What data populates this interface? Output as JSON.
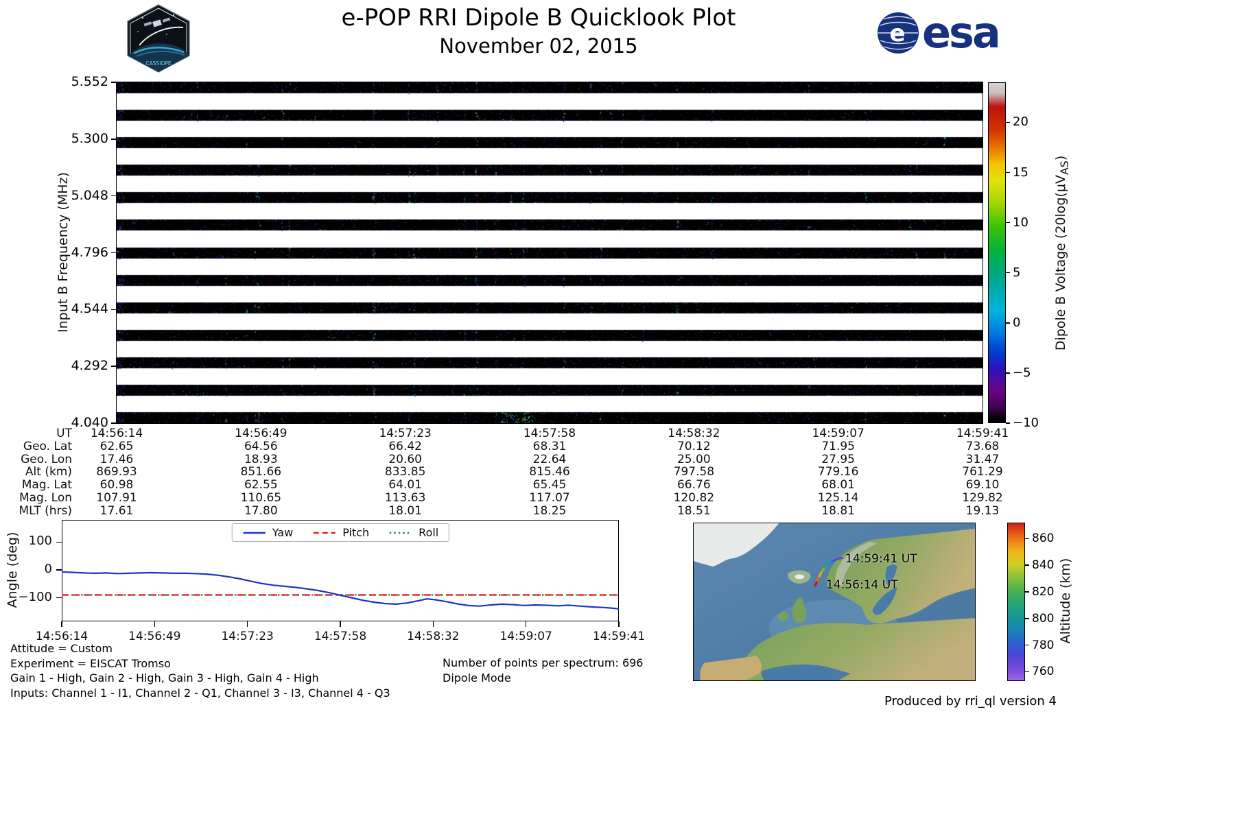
{
  "header": {
    "title": "e-POP RRI Dipole B Quicklook Plot",
    "subtitle": "November 02, 2015",
    "esa_text": "esa",
    "emblem_letter": "e",
    "mission_text": "CASSIOPE",
    "esa_blue": "#16317d"
  },
  "spectrogram": {
    "ylabel": "Input B Frequency (MHz)",
    "ytick_labels": [
      "5.552",
      "5.300",
      "5.048",
      "4.796",
      "4.544",
      "4.292",
      "4.040"
    ],
    "colorbar": {
      "label_main": "Dipole B Voltage (20log(μV",
      "label_sub": "AS",
      "label_end": ")",
      "tick_labels": [
        "20",
        "15",
        "10",
        "5",
        "0",
        "−5",
        "−10"
      ],
      "tick_values": [
        20,
        15,
        10,
        5,
        0,
        -5,
        -10
      ],
      "vmin": -10,
      "vmax": 24
    }
  },
  "ephemeris": {
    "rows": [
      {
        "label": "UT",
        "values": [
          "14:56:14",
          "14:56:49",
          "14:57:23",
          "14:57:58",
          "14:58:32",
          "14:59:07",
          "14:59:41"
        ]
      },
      {
        "label": "Geo. Lat",
        "values": [
          "62.65",
          "64.56",
          "66.42",
          "68.31",
          "70.12",
          "71.95",
          "73.68"
        ]
      },
      {
        "label": "Geo. Lon",
        "values": [
          "17.46",
          "18.93",
          "20.60",
          "22.64",
          "25.00",
          "27.95",
          "31.47"
        ]
      },
      {
        "label": "Alt (km)",
        "values": [
          "869.93",
          "851.66",
          "833.85",
          "815.46",
          "797.58",
          "779.16",
          "761.29"
        ]
      },
      {
        "label": "Mag. Lat",
        "values": [
          "60.98",
          "62.55",
          "64.01",
          "65.45",
          "66.76",
          "68.01",
          "69.10"
        ]
      },
      {
        "label": "Mag. Lon",
        "values": [
          "107.91",
          "110.65",
          "113.63",
          "117.07",
          "120.82",
          "125.14",
          "129.82"
        ]
      },
      {
        "label": "MLT (hrs)",
        "values": [
          "17.61",
          "17.80",
          "18.01",
          "18.25",
          "18.51",
          "18.81",
          "19.13"
        ]
      }
    ]
  },
  "chart_data": [
    {
      "type": "heatmap",
      "title": "RRI Dipole B spectrogram",
      "ylabel": "Input B Frequency (MHz)",
      "ytick_values": [
        5.552,
        5.3,
        5.048,
        4.796,
        4.544,
        4.292,
        4.04
      ],
      "x_range": [
        "14:56:14",
        "14:59:41"
      ],
      "num_bands": 13,
      "band_frequencies_mhz": [
        5.552,
        5.426,
        5.3,
        5.174,
        5.048,
        4.922,
        4.796,
        4.67,
        4.544,
        4.418,
        4.292,
        4.166,
        4.04
      ],
      "colorbar_label": "Dipole B Voltage (20log(μV_AS)",
      "colorbar_ticks": [
        20,
        15,
        10,
        5,
        0,
        -5,
        -10
      ],
      "colorbar_range": [
        -10,
        24
      ],
      "note": "13 horizontal black signal bands on white background, speckled with violet/blue/cyan noise"
    },
    {
      "type": "line",
      "ylabel": "Angle (deg)",
      "ytick_labels": [
        "100",
        "0",
        "−100"
      ],
      "ytick_values": [
        100,
        0,
        -100
      ],
      "ylim": [
        -185,
        180
      ],
      "x_tick_labels": [
        "14:56:14",
        "14:56:49",
        "14:57:23",
        "14:57:58",
        "14:58:32",
        "14:59:07",
        "14:59:41"
      ],
      "legend_position": "top-center",
      "series": [
        {
          "name": "Yaw",
          "color": "#1a35c8",
          "style": "solid",
          "x": [
            0,
            0.02,
            0.04,
            0.06,
            0.08,
            0.1,
            0.12,
            0.14,
            0.16,
            0.18,
            0.2,
            0.22,
            0.24,
            0.26,
            0.28,
            0.3,
            0.32,
            0.34,
            0.36,
            0.38,
            0.4,
            0.42,
            0.44,
            0.46,
            0.48,
            0.5,
            0.52,
            0.54,
            0.56,
            0.58,
            0.6,
            0.62,
            0.64,
            0.655,
            0.67,
            0.69,
            0.71,
            0.73,
            0.75,
            0.77,
            0.79,
            0.81,
            0.83,
            0.85,
            0.87,
            0.89,
            0.91,
            0.93,
            0.95,
            0.97,
            0.985,
            1.0
          ],
          "values": [
            -7,
            -9,
            -11,
            -12,
            -11,
            -13,
            -12,
            -11,
            -10,
            -11,
            -12,
            -12,
            -13,
            -15,
            -19,
            -25,
            -32,
            -41,
            -49,
            -55,
            -59,
            -63,
            -68,
            -74,
            -82,
            -91,
            -100,
            -109,
            -116,
            -121,
            -123,
            -119,
            -111,
            -104,
            -107,
            -114,
            -122,
            -128,
            -130,
            -126,
            -123,
            -125,
            -128,
            -126,
            -127,
            -129,
            -127,
            -130,
            -133,
            -135,
            -137,
            -140
          ]
        },
        {
          "name": "Pitch",
          "color": "#e02020",
          "style": "dashed",
          "x": [
            0,
            1
          ],
          "values": [
            -90,
            -90
          ]
        },
        {
          "name": "Roll",
          "color": "#1e8c2e",
          "style": "dotted",
          "x": [
            0,
            1
          ],
          "values": [
            -90,
            -90
          ]
        }
      ]
    }
  ],
  "map": {
    "end_label": "14:59:41 UT",
    "start_label": "14:56:14 UT",
    "track_colors": [
      "#cc1100",
      "#ee6600",
      "#ddb800",
      "#88bb22",
      "#22a877",
      "#1193bb",
      "#2a5fd0",
      "#6a3fd0"
    ],
    "colorbar": {
      "label": "Altitude (km)",
      "tick_labels": [
        "860",
        "840",
        "820",
        "800",
        "780",
        "760"
      ],
      "tick_values": [
        860,
        840,
        820,
        800,
        780,
        760
      ],
      "vmin": 753,
      "vmax": 872
    }
  },
  "footer": {
    "line1": "Attitude = Custom",
    "line2": "Experiment = EISCAT Tromso",
    "line3": "Gain 1 - High, Gain 2 - High, Gain 3 - High, Gain 4 - High",
    "line4": "Inputs: Channel 1 - I1, Channel 2 - Q1, Channel 3 - I3, Channel 4 - Q3",
    "points_per_spectrum": "Number of points per spectrum: 696",
    "mode": "Dipole Mode",
    "credit": "Produced by rri_ql version 4"
  }
}
